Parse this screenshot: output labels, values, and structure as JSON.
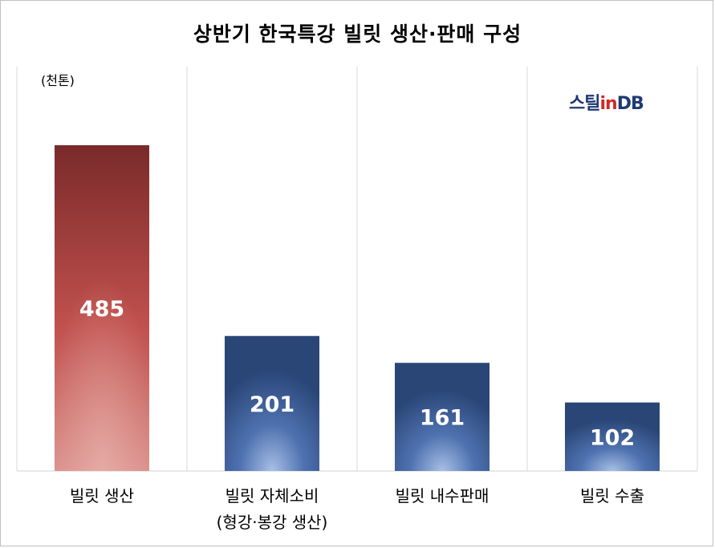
{
  "chart_data": {
    "type": "bar",
    "title": "상반기 한국특강 빌릿 생산·판매 구성",
    "unit": "(천톤)",
    "categories": [
      [
        "빌릿 생산"
      ],
      [
        "빌릿 자체소비",
        "(형강·봉강 생산)"
      ],
      [
        "빌릿 내수판매"
      ],
      [
        "빌릿 수출"
      ]
    ],
    "values": [
      485,
      201,
      161,
      102
    ],
    "ylim": [
      0,
      500
    ],
    "grid": "vertical-separators",
    "legend": "none",
    "colors": {
      "highlight_top": "#7a2a2a",
      "highlight_mid": "#c0504d",
      "highlight_bottom": "#e8a4a0",
      "bar_dark": "#2c4a7e",
      "bar_light": "#9db4dc"
    }
  },
  "logo": {
    "part1": "스틸",
    "part2": "in",
    "part3": "DB"
  }
}
